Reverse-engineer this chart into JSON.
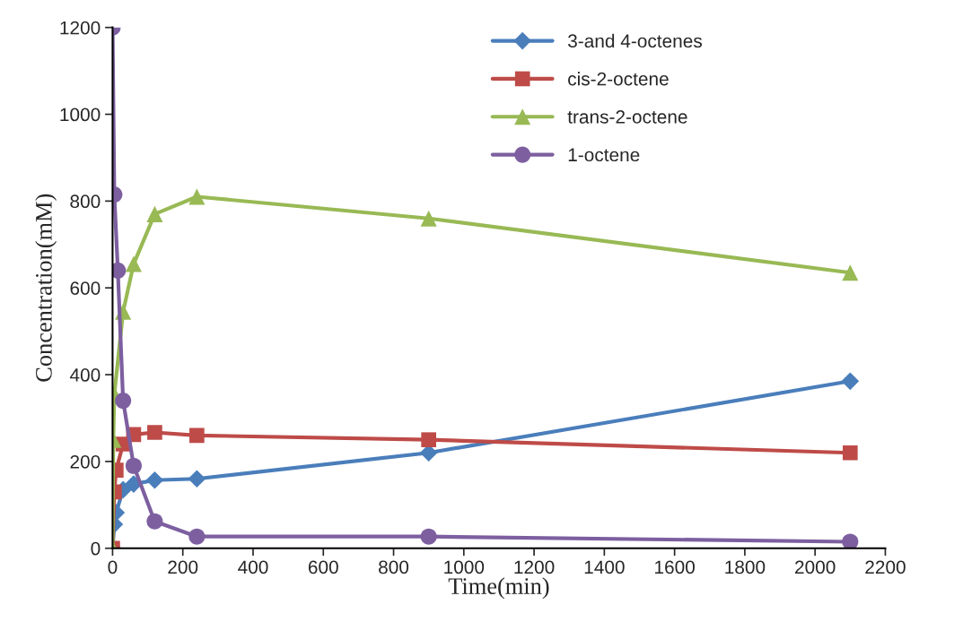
{
  "chart_data": {
    "type": "line",
    "xlabel": "Time(min)",
    "ylabel": "Concentration(mM)",
    "xlim": [
      0,
      2200
    ],
    "xticks": [
      0,
      200,
      400,
      600,
      800,
      1000,
      1200,
      1400,
      1600,
      1800,
      2000,
      2200
    ],
    "ylim": [
      0,
      1200
    ],
    "yticks": [
      0,
      200,
      400,
      600,
      800,
      1000,
      1200
    ],
    "grid": false,
    "legend": "top right",
    "series": [
      {
        "name": "3-and 4-octenes",
        "color": "#4a7ebb",
        "marker": "diamond",
        "x": [
          0,
          5,
          10,
          30,
          60,
          120,
          240,
          900,
          2100
        ],
        "values": [
          0,
          55,
          82,
          135,
          148,
          157,
          160,
          220,
          385
        ]
      },
      {
        "name": "cis-2-octene",
        "color": "#be4b48",
        "marker": "square",
        "x": [
          0,
          5,
          10,
          30,
          60,
          120,
          240,
          900,
          2100
        ],
        "values": [
          0,
          130,
          180,
          240,
          262,
          267,
          260,
          250,
          220
        ]
      },
      {
        "name": "trans-2-octene",
        "color": "#98b954",
        "marker": "triangle",
        "x": [
          0,
          2,
          5,
          30,
          60,
          120,
          240,
          900,
          2100
        ],
        "values": [
          0,
          250,
          355,
          545,
          655,
          770,
          810,
          760,
          635
        ]
      },
      {
        "name": "1-octene",
        "color": "#7d5fa0",
        "marker": "circle",
        "x": [
          0,
          5,
          15,
          30,
          60,
          120,
          240,
          900,
          2100
        ],
        "values": [
          1200,
          815,
          640,
          340,
          190,
          62,
          27,
          27,
          15
        ]
      }
    ]
  }
}
